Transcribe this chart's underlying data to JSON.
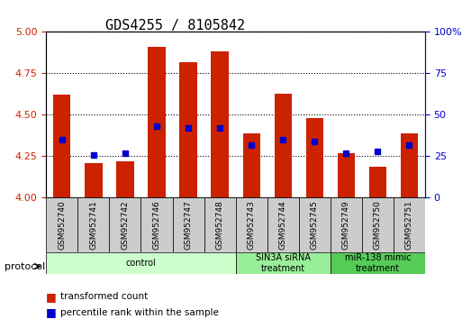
{
  "title": "GDS4255 / 8105842",
  "samples": [
    "GSM952740",
    "GSM952741",
    "GSM952742",
    "GSM952746",
    "GSM952747",
    "GSM952748",
    "GSM952743",
    "GSM952744",
    "GSM952745",
    "GSM952749",
    "GSM952750",
    "GSM952751"
  ],
  "transformed_counts": [
    4.62,
    4.21,
    4.22,
    4.91,
    4.82,
    4.88,
    4.39,
    4.63,
    4.48,
    4.27,
    4.19,
    4.39
  ],
  "percentile_ranks": [
    35,
    26,
    27,
    43,
    42,
    42,
    32,
    35,
    34,
    27,
    28,
    32
  ],
  "ylim_left": [
    4.0,
    5.0
  ],
  "ylim_right": [
    0,
    100
  ],
  "yticks_left": [
    4.0,
    4.25,
    4.5,
    4.75,
    5.0
  ],
  "yticks_right": [
    0,
    25,
    50,
    75,
    100
  ],
  "bar_color": "#cc2200",
  "dot_color": "#0000cc",
  "grid_color": "#000000",
  "groups": [
    {
      "label": "control",
      "start": 0,
      "end": 6,
      "color": "#ccffcc"
    },
    {
      "label": "SIN3A siRNA\ntreatment",
      "start": 6,
      "end": 9,
      "color": "#99ee99"
    },
    {
      "label": "miR-138 mimic\ntreatment",
      "start": 9,
      "end": 12,
      "color": "#55cc55"
    }
  ],
  "protocol_label": "protocol",
  "legend_items": [
    {
      "color": "#cc2200",
      "label": "transformed count"
    },
    {
      "color": "#0000cc",
      "label": "percentile rank within the sample"
    }
  ],
  "bar_bottom": 4.0,
  "right_axis_color": "#0000cc",
  "left_axis_color": "#cc2200",
  "tick_label_box_color": "#cccccc",
  "title_fontsize": 11,
  "tick_fontsize": 8,
  "label_fontsize": 8
}
